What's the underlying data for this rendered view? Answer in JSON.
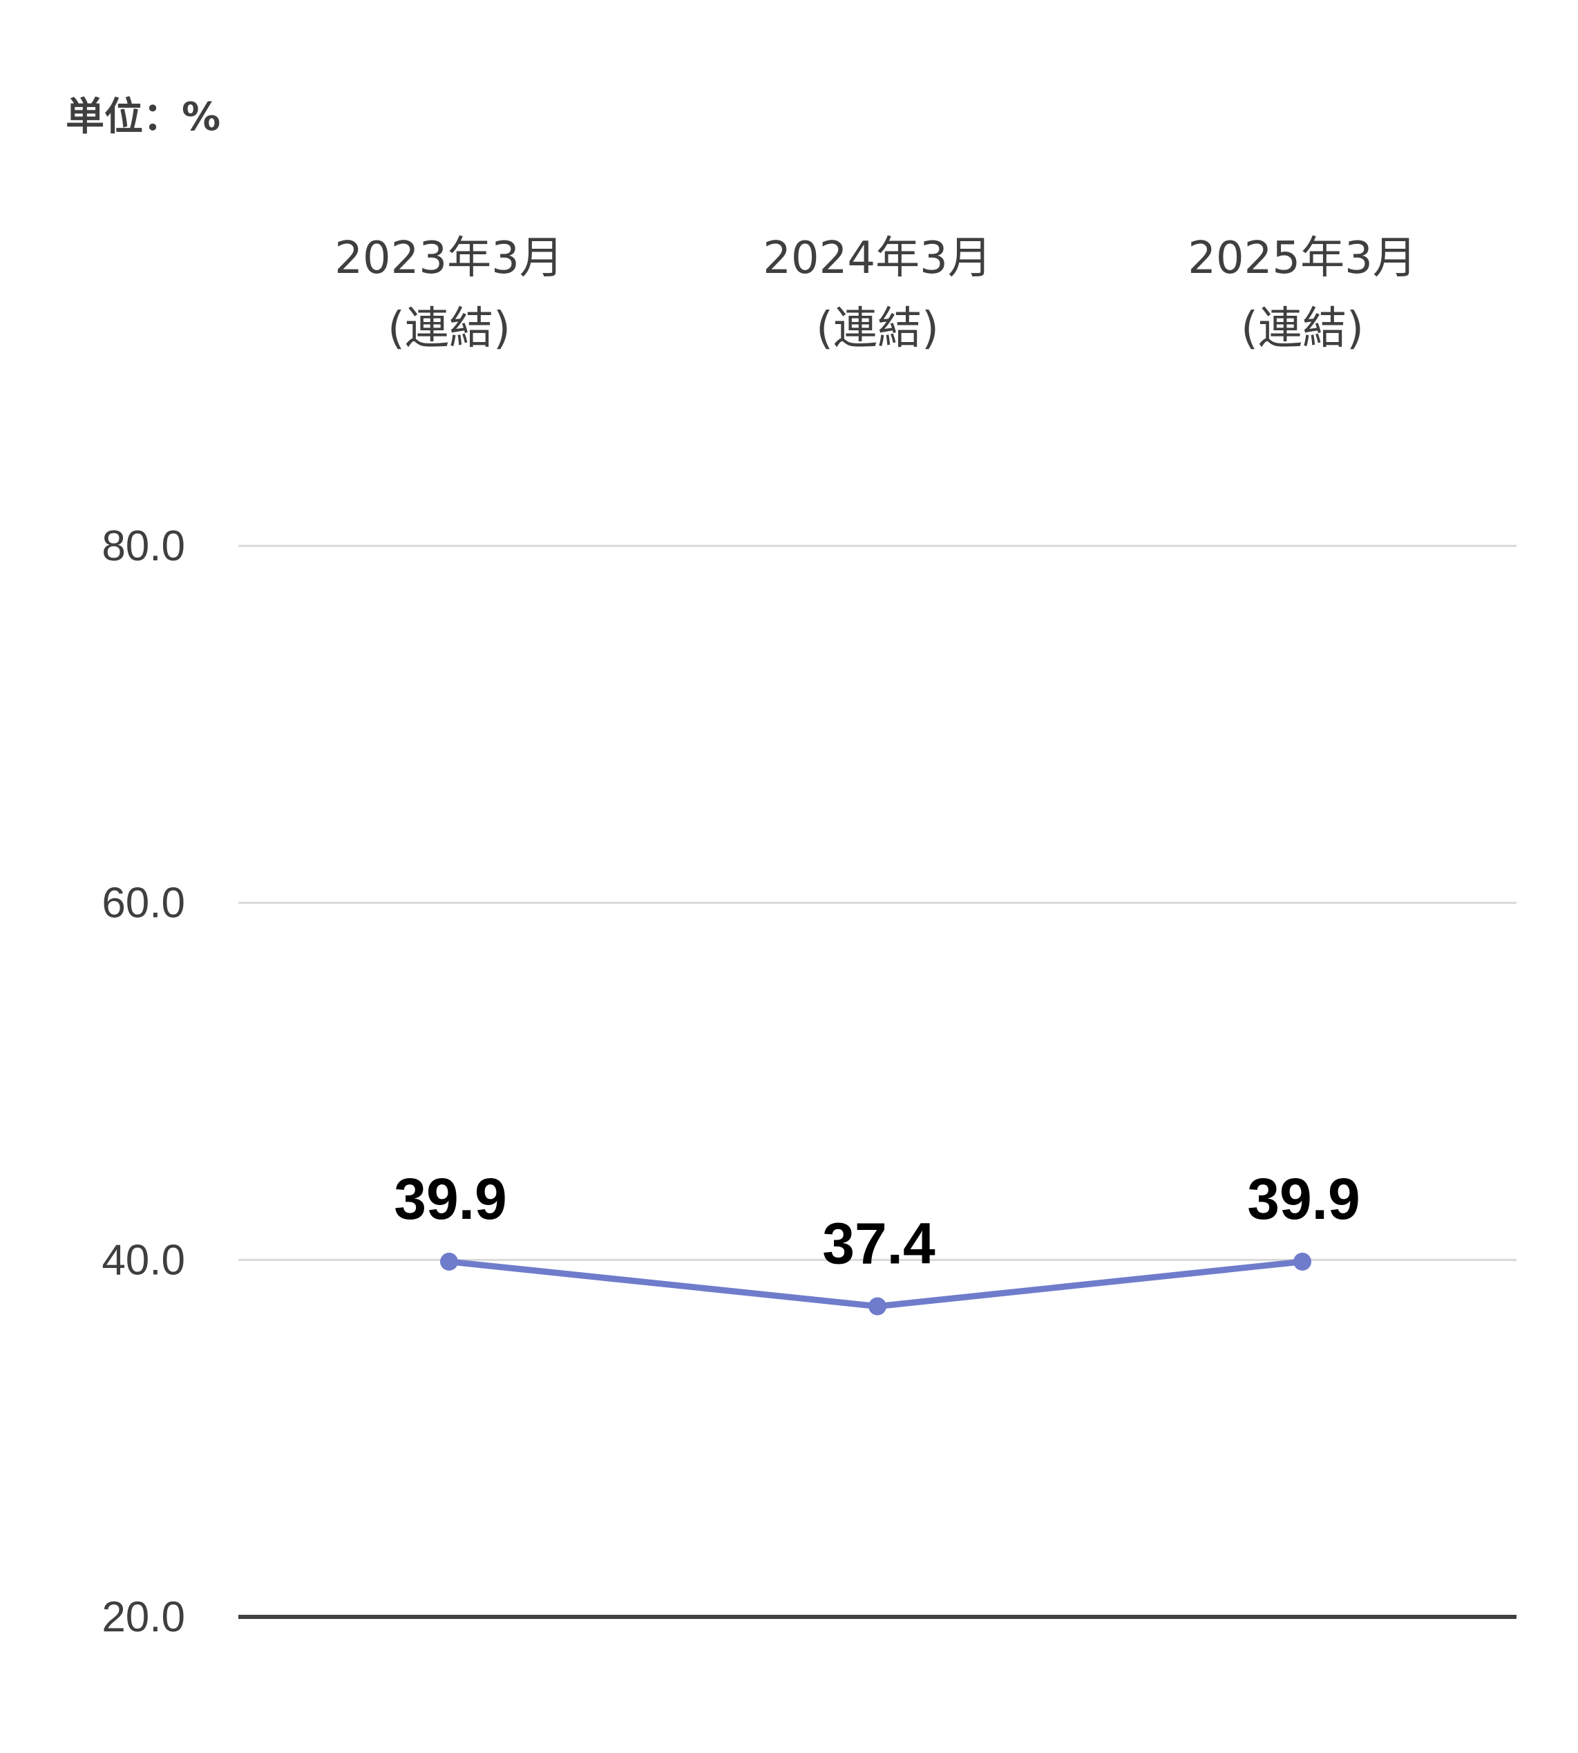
{
  "unit_label": "単位：%",
  "colors": {
    "line": "#6f7ccb",
    "grid": "#d9d9d9",
    "baseline": "#404040",
    "text": "#3f3f3f",
    "data_label": "#000000"
  },
  "chart_data": {
    "type": "line",
    "categories": [
      [
        "2023年3月",
        "(連結)"
      ],
      [
        "2024年3月",
        "(連結)"
      ],
      [
        "2025年3月",
        "(連結)"
      ]
    ],
    "series": [
      {
        "values": [
          39.9,
          37.4,
          39.9
        ]
      }
    ],
    "data_labels": [
      "39.9",
      "37.4",
      "39.9"
    ],
    "y_ticks": [
      20.0,
      40.0,
      60.0,
      80.0
    ],
    "y_tick_labels": [
      "20.0",
      "40.0",
      "60.0",
      "80.0"
    ],
    "ylim": [
      20,
      80
    ],
    "x_axis_position": "top",
    "grid": true,
    "legend": "none"
  }
}
